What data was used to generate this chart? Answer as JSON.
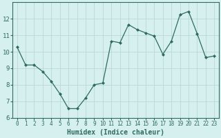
{
  "x": [
    0,
    1,
    2,
    3,
    4,
    5,
    6,
    7,
    8,
    9,
    10,
    11,
    12,
    13,
    14,
    15,
    16,
    17,
    18,
    19,
    20,
    21,
    22,
    23
  ],
  "y": [
    10.3,
    9.2,
    9.2,
    8.8,
    8.2,
    7.45,
    6.55,
    6.55,
    7.2,
    8.0,
    8.1,
    10.65,
    10.55,
    11.65,
    11.35,
    11.15,
    10.95,
    9.85,
    10.65,
    12.25,
    12.45,
    11.1,
    9.65,
    9.75
  ],
  "line_color": "#2e6b5e",
  "marker": "D",
  "marker_size": 2.0,
  "bg_color": "#d6f0ef",
  "grid_color": "#b8d8d5",
  "xlabel": "Humidex (Indice chaleur)",
  "ylim": [
    6,
    13
  ],
  "xlim": [
    -0.5,
    23.5
  ],
  "yticks": [
    6,
    7,
    8,
    9,
    10,
    11,
    12
  ],
  "xticks": [
    0,
    1,
    2,
    3,
    4,
    5,
    6,
    7,
    8,
    9,
    10,
    11,
    12,
    13,
    14,
    15,
    16,
    17,
    18,
    19,
    20,
    21,
    22,
    23
  ],
  "font_color": "#2e6b5e",
  "xlabel_fontsize": 7.0,
  "tick_fontsize_x": 5.5,
  "tick_fontsize_y": 6.5
}
